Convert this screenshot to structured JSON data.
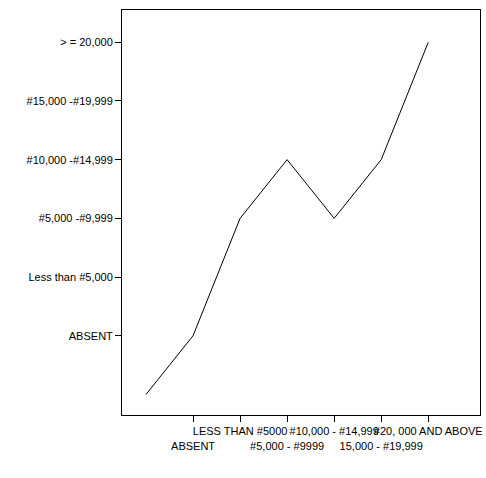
{
  "chart_data": {
    "type": "line",
    "categories": [
      null,
      "ABSENT",
      "LESS THAN #5000",
      "#5,000 - #9999",
      "#10,000 - #14,999",
      "15,000 - #19,999",
      "#20, 000 AND ABOVE"
    ],
    "values": [
      0,
      1,
      3,
      4,
      3,
      4,
      6
    ],
    "color": "#000000",
    "ylim": [
      -0.35,
      6.55
    ],
    "yticks": [
      {
        "value": 1,
        "label": "ABSENT"
      },
      {
        "value": 2,
        "label": "Less than #5,000"
      },
      {
        "value": 3,
        "label": "#5,000 -#9,999"
      },
      {
        "value": 4,
        "label": "#10,000 -#14,999"
      },
      {
        "value": 5,
        "label": "#15,000 -#19,999"
      },
      {
        "value": 6,
        "label": "> = 20,000"
      }
    ],
    "grid": false
  }
}
